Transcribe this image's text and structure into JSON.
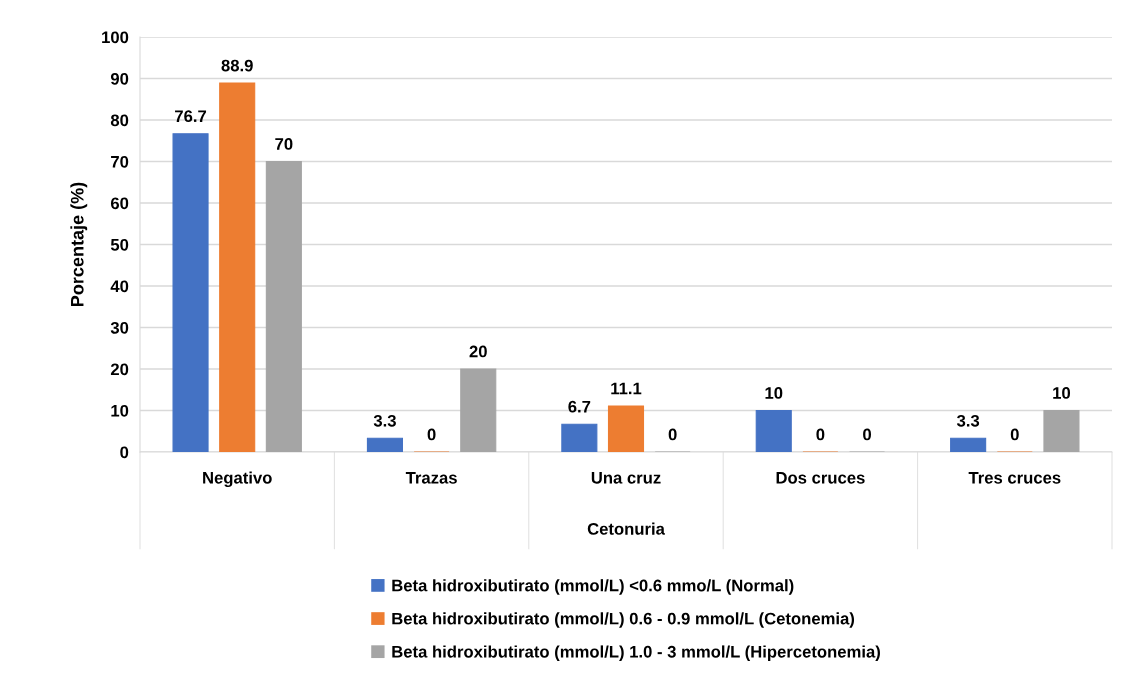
{
  "chart_data": {
    "type": "bar",
    "xlabel": "Cetonuria",
    "ylabel": "Porcentaje (%)",
    "categories": [
      "Negativo",
      "Trazas",
      "Una cruz",
      "Dos cruces",
      "Tres cruces"
    ],
    "series": [
      {
        "name": "Beta hidroxibutirato (mmol/L) <0.6 mmo/L (Normal)",
        "color": "#4472c4",
        "values": [
          76.7,
          3.3,
          6.7,
          10,
          3.3
        ]
      },
      {
        "name": "Beta hidroxibutirato (mmol/L) 0.6 - 0.9 mmol/L (Cetonemia)",
        "color": "#ed7d31",
        "values": [
          88.9,
          0,
          11.1,
          0,
          0
        ]
      },
      {
        "name": "Beta hidroxibutirato (mmol/L) 1.0 - 3 mmol/L (Hipercetonemia)",
        "color": "#a5a5a5",
        "values": [
          70,
          20,
          0,
          0,
          10
        ]
      }
    ],
    "ylim": [
      0,
      100
    ],
    "yticks": [
      0,
      10,
      20,
      30,
      40,
      50,
      60,
      70,
      80,
      90,
      100
    ],
    "grid": "y",
    "legend": "bottom",
    "data_labels": true
  }
}
